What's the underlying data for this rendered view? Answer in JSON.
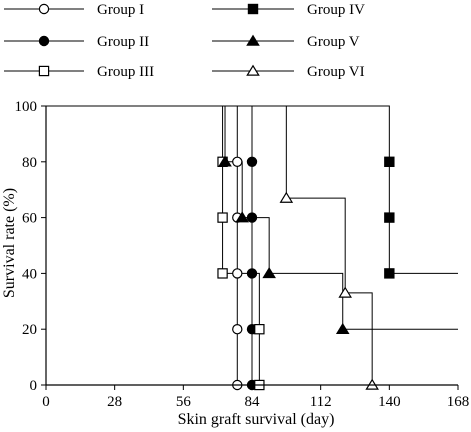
{
  "chart_data": {
    "type": "line",
    "step": true,
    "xlabel": "Skin graft survival (day)",
    "ylabel": "Survival rate (%)",
    "xlim": [
      0,
      168
    ],
    "ylim": [
      0,
      100
    ],
    "xticks": [
      0,
      28,
      56,
      84,
      112,
      140,
      168
    ],
    "xtick_labels": [
      "0",
      "28",
      "56",
      "84",
      "112",
      "140",
      "168"
    ],
    "yticks": [
      0,
      20,
      40,
      60,
      80,
      100
    ],
    "ytick_labels": [
      "0",
      "20",
      "40",
      "60",
      "80",
      "100"
    ],
    "grid": false,
    "legend_position": "top",
    "series": [
      {
        "name": "Group I",
        "marker": "circle-open",
        "x": [
          0,
          78,
          78,
          78,
          78,
          78
        ],
        "y": [
          100,
          80,
          60,
          40,
          20,
          0
        ]
      },
      {
        "name": "Group II",
        "marker": "circle-filled",
        "x": [
          0,
          84,
          84,
          84,
          84,
          84
        ],
        "y": [
          100,
          80,
          60,
          40,
          20,
          0
        ]
      },
      {
        "name": "Group III",
        "marker": "square-open",
        "x": [
          0,
          72,
          72,
          72,
          87,
          87
        ],
        "y": [
          100,
          80,
          60,
          40,
          20,
          0
        ]
      },
      {
        "name": "Group IV",
        "marker": "square-filled",
        "x": [
          0,
          140,
          140,
          140
        ],
        "y": [
          100,
          80,
          60,
          40
        ],
        "extend_to_x": 168
      },
      {
        "name": "Group V",
        "marker": "triangle-filled",
        "x": [
          0,
          73,
          80,
          91,
          121
        ],
        "y": [
          100,
          80,
          60,
          40,
          20
        ],
        "extend_to_x": 168
      },
      {
        "name": "Group VI",
        "marker": "triangle-open",
        "x": [
          0,
          98,
          122,
          133
        ],
        "y": [
          100,
          67,
          33,
          0
        ]
      }
    ]
  }
}
